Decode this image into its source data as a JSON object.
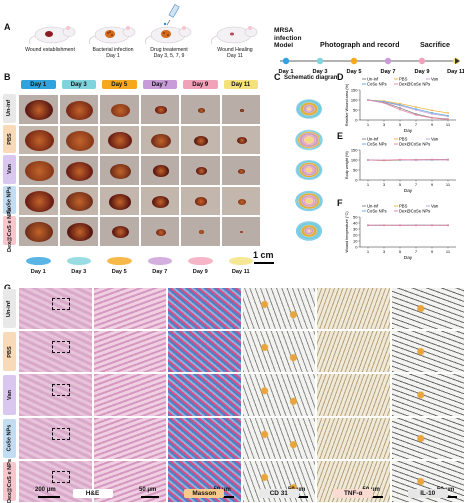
{
  "panels": {
    "a": "A",
    "b": "B",
    "c": "C",
    "d": "D",
    "e": "E",
    "f": "F",
    "g": "G"
  },
  "panel_a": {
    "steps": [
      "Wound establishment",
      "Bacterial infection",
      "Day 1",
      "Drug treatement",
      "Day 3,  5,  7,  9",
      "Wound Healing",
      "Day 11"
    ],
    "model_title": "MRSA infection Model",
    "photo_label": "Photograph and record",
    "sacrifice_label": "Sacrifice",
    "timeline_days": [
      "Day 1",
      "Day 3",
      "Day 5",
      "Day 7",
      "Day 9",
      "Day 11"
    ],
    "timeline_colors": [
      "#2ea3e0",
      "#7fd3dd",
      "#f5a81c",
      "#c89cd8",
      "#f2a2b8",
      "#f4e17a"
    ]
  },
  "panel_b": {
    "days": [
      "Day 1",
      "Day 3",
      "Day 5",
      "Day 7",
      "Day 9",
      "Day 11"
    ],
    "day_colors": [
      "#2ea3e0",
      "#7fd3dd",
      "#f5a81c",
      "#c89cd8",
      "#f2a2b8",
      "#f4e17a"
    ],
    "groups": [
      "Un-inf",
      "PBS",
      "Van",
      "CoSe NPs",
      "Dex@CoS e NPs"
    ],
    "group_colors": [
      "#e8e8e8",
      "#f8d9b8",
      "#d9c7ef",
      "#c2dcf2",
      "#f7c6cd"
    ],
    "scale_label": "1 cm",
    "wound_sizes": [
      [
        0.82,
        0.8,
        0.55,
        0.35,
        0.2,
        0.12
      ],
      [
        0.86,
        0.82,
        0.7,
        0.6,
        0.42,
        0.3
      ],
      [
        0.84,
        0.8,
        0.62,
        0.48,
        0.32,
        0.2
      ],
      [
        0.86,
        0.8,
        0.66,
        0.5,
        0.36,
        0.24
      ],
      [
        0.82,
        0.76,
        0.5,
        0.3,
        0.16,
        0.08
      ]
    ]
  },
  "panel_c": {
    "title": "Schematic diagram"
  },
  "colors": {
    "Un-inf": "#888888",
    "PBS": "#f3b340",
    "Van": "#c9a5dc",
    "CoSe NPs": "#6aaee0",
    "Dex@CoSe NPs": "#e985a4"
  },
  "chart_data": [
    {
      "type": "line",
      "ylabel": "Relative Wound area (%)",
      "xlabel": "Day",
      "x": [
        1,
        3,
        5,
        7,
        9,
        11
      ],
      "ylim": [
        0,
        150
      ],
      "yticks": [
        0,
        50,
        100,
        150
      ],
      "series": [
        {
          "name": "Un-inf",
          "values": [
            100,
            88,
            60,
            30,
            12,
            5
          ]
        },
        {
          "name": "PBS",
          "values": [
            100,
            95,
            82,
            65,
            48,
            35
          ]
        },
        {
          "name": "Van",
          "values": [
            100,
            90,
            72,
            50,
            30,
            18
          ]
        },
        {
          "name": "CoSe NPs",
          "values": [
            100,
            92,
            76,
            55,
            36,
            22
          ]
        },
        {
          "name": "Dex@CoSe NPs",
          "values": [
            100,
            85,
            52,
            25,
            10,
            3
          ]
        }
      ]
    },
    {
      "type": "line",
      "ylabel": "Body weight (%)",
      "xlabel": "Day",
      "x": [
        1,
        3,
        5,
        7,
        9,
        11
      ],
      "ylim": [
        0,
        150
      ],
      "yticks": [
        0,
        50,
        100,
        150
      ],
      "series": [
        {
          "name": "Un-inf",
          "values": [
            100,
            98,
            101,
            100,
            102,
            101
          ]
        },
        {
          "name": "PBS",
          "values": [
            100,
            97,
            99,
            101,
            100,
            102
          ]
        },
        {
          "name": "Van",
          "values": [
            100,
            99,
            100,
            99,
            101,
            100
          ]
        },
        {
          "name": "CoSe NPs",
          "values": [
            100,
            98,
            100,
            102,
            101,
            103
          ]
        },
        {
          "name": "Dex@CoSe NPs",
          "values": [
            100,
            99,
            102,
            101,
            103,
            102
          ]
        }
      ]
    },
    {
      "type": "line",
      "ylabel": "Wound temperature (°C)",
      "xlabel": "Day",
      "x": [
        1,
        3,
        5,
        7,
        9,
        11
      ],
      "ylim": [
        0,
        50
      ],
      "yticks": [
        0,
        10,
        20,
        30,
        40,
        50
      ],
      "series": [
        {
          "name": "Un-inf",
          "values": [
            36,
            36.2,
            36.1,
            36.3,
            36.2,
            36.1
          ]
        },
        {
          "name": "PBS",
          "values": [
            36.3,
            36.5,
            36.2,
            36.4,
            36.3,
            36.2
          ]
        },
        {
          "name": "Van",
          "values": [
            36.1,
            36.3,
            36.4,
            36.2,
            36.1,
            36.3
          ]
        },
        {
          "name": "CoSe NPs",
          "values": [
            36.2,
            36.1,
            36.3,
            36.5,
            36.4,
            36.2
          ]
        },
        {
          "name": "Dex@CoSe NPs",
          "values": [
            36.4,
            36.2,
            36.3,
            36.1,
            36.2,
            36.4
          ]
        }
      ]
    }
  ],
  "panel_g": {
    "groups": [
      "Un-inf",
      "PBS",
      "Van",
      "CoSe NPs",
      "Dex@CoS e NPs"
    ],
    "stains": [
      "H&E",
      "Masson",
      "CD 31",
      "TNF-α",
      "IL-10"
    ],
    "stain_colors": [
      "#ffffff",
      "#f7c98c",
      "#e9e9e9",
      "#fbdad2",
      "#e6e6e6"
    ],
    "scale_200": "200 μm",
    "scale_50": "50 μm"
  }
}
